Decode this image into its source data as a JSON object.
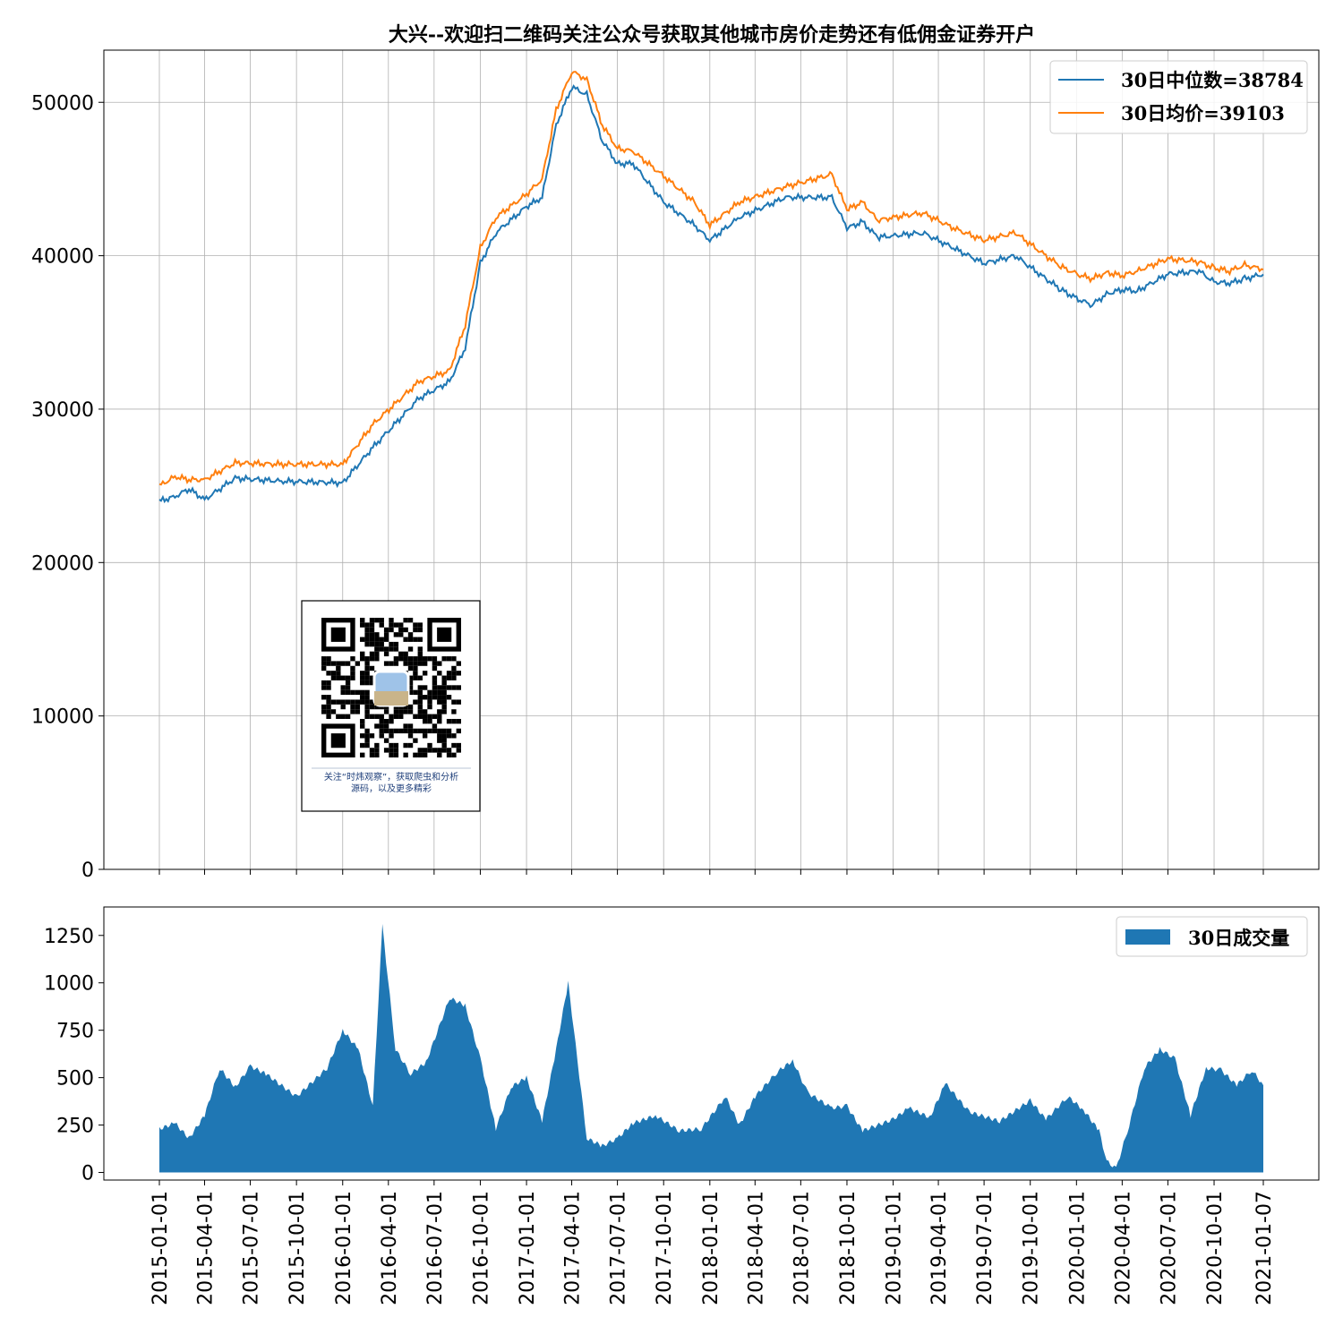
{
  "colors": {
    "median": "#1f77b4",
    "mean": "#ff7f0e",
    "volume": "#1f77b4"
  },
  "chart_data": [
    {
      "type": "line",
      "title": "大兴--欢迎扫二维码关注公众号获取其他城市房价走势还有低佣金证券开户",
      "ylim": [
        0,
        53400
      ],
      "yticks": [
        0,
        10000,
        20000,
        30000,
        40000,
        50000
      ],
      "grid": true,
      "legend_position": "top-right",
      "x": [
        "2015-01-01",
        "2015-02-01",
        "2015-03-01",
        "2015-04-01",
        "2015-06-01",
        "2015-09-01",
        "2016-01-01",
        "2016-03-01",
        "2016-06-01",
        "2016-08-01",
        "2016-09-01",
        "2016-10-01",
        "2016-11-01",
        "2017-01-01",
        "2017-02-01",
        "2017-03-01",
        "2017-04-01",
        "2017-05-01",
        "2017-06-01",
        "2017-07-01",
        "2017-08-01",
        "2017-10-01",
        "2017-12-01",
        "2018-01-01",
        "2018-03-01",
        "2018-06-01",
        "2018-09-01",
        "2018-10-01",
        "2018-11-01",
        "2018-12-01",
        "2019-01-01",
        "2019-03-01",
        "2019-05-01",
        "2019-07-01",
        "2019-09-01",
        "2019-11-01",
        "2019-12-01",
        "2020-01-01",
        "2020-02-01",
        "2020-03-01",
        "2020-04-01",
        "2020-05-01",
        "2020-07-01",
        "2020-09-01",
        "2020-10-01",
        "2020-11-01",
        "2020-12-01",
        "2021-01-07"
      ],
      "series": [
        {
          "name": "30日中位数=38784",
          "values": [
            24000,
            24300,
            24800,
            24100,
            25500,
            25300,
            25200,
            27500,
            30700,
            31800,
            34000,
            39500,
            41500,
            43200,
            43800,
            48500,
            51000,
            50500,
            47500,
            46000,
            46000,
            43500,
            42000,
            41000,
            42500,
            43800,
            43800,
            41800,
            42200,
            41200,
            41300,
            41500,
            40500,
            39500,
            40000,
            38500,
            37800,
            37200,
            36800,
            37500,
            37800,
            37700,
            38800,
            39000,
            38300,
            38200,
            38500,
            38784
          ]
        },
        {
          "name": "30日均价=39103",
          "values": [
            25000,
            25600,
            25400,
            25400,
            26500,
            26400,
            26400,
            29000,
            31800,
            32500,
            35500,
            40500,
            42500,
            44000,
            45000,
            49500,
            52000,
            51500,
            48500,
            47000,
            46800,
            45200,
            43500,
            42000,
            43500,
            44500,
            45300,
            43000,
            43500,
            42300,
            42500,
            42800,
            41800,
            41000,
            41500,
            40000,
            39300,
            38800,
            38500,
            38900,
            38700,
            39000,
            39800,
            39600,
            39200,
            39000,
            39400,
            39103
          ]
        }
      ]
    },
    {
      "type": "area",
      "ylim": [
        -40,
        1400
      ],
      "yticks": [
        0,
        250,
        500,
        750,
        1000,
        1250
      ],
      "grid": false,
      "legend_position": "top-right",
      "x_tick_labels": [
        "2015-01-01",
        "2015-04-01",
        "2015-07-01",
        "2015-10-01",
        "2016-01-01",
        "2016-04-01",
        "2016-07-01",
        "2016-10-01",
        "2017-01-01",
        "2017-04-01",
        "2017-07-01",
        "2017-10-01",
        "2018-01-01",
        "2018-04-01",
        "2018-07-01",
        "2018-10-01",
        "2019-01-01",
        "2019-04-01",
        "2019-07-01",
        "2019-10-01",
        "2020-01-01",
        "2020-04-01",
        "2020-07-01",
        "2020-10-01",
        "2021-01-07"
      ],
      "x": [
        "2015-01-01",
        "2015-02-01",
        "2015-03-01",
        "2015-04-01",
        "2015-05-01",
        "2015-06-01",
        "2015-07-01",
        "2015-08-01",
        "2015-10-01",
        "2015-12-01",
        "2016-01-01",
        "2016-02-01",
        "2016-03-01",
        "2016-03-20",
        "2016-04-15",
        "2016-05-15",
        "2016-06-15",
        "2016-08-01",
        "2016-09-01",
        "2016-10-01",
        "2016-11-01",
        "2016-12-01",
        "2017-01-01",
        "2017-02-01",
        "2017-03-01",
        "2017-03-25",
        "2017-05-01",
        "2017-06-01",
        "2017-07-01",
        "2017-08-01",
        "2017-09-15",
        "2017-11-01",
        "2017-12-15",
        "2018-02-01",
        "2018-03-01",
        "2018-04-01",
        "2018-05-15",
        "2018-06-15",
        "2018-07-15",
        "2018-09-01",
        "2018-10-01",
        "2018-11-01",
        "2019-01-01",
        "2019-02-01",
        "2019-03-15",
        "2019-04-15",
        "2019-06-01",
        "2019-08-01",
        "2019-10-01",
        "2019-11-01",
        "2019-12-15",
        "2020-01-15",
        "2020-02-15",
        "2020-03-01",
        "2020-03-20",
        "2020-04-15",
        "2020-05-15",
        "2020-06-15",
        "2020-07-15",
        "2020-08-15",
        "2020-09-15",
        "2020-10-15",
        "2020-11-15",
        "2020-12-15",
        "2021-01-07"
      ],
      "series": [
        {
          "name": "30日成交量",
          "values": [
            230,
            260,
            180,
            300,
            550,
            450,
            560,
            520,
            400,
            550,
            750,
            650,
            350,
            1300,
            650,
            520,
            580,
            920,
            880,
            600,
            230,
            450,
            500,
            270,
            650,
            1000,
            180,
            140,
            180,
            260,
            300,
            220,
            230,
            400,
            250,
            400,
            530,
            590,
            420,
            340,
            350,
            220,
            280,
            340,
            290,
            470,
            320,
            270,
            380,
            280,
            400,
            330,
            220,
            60,
            20,
            250,
            550,
            650,
            600,
            300,
            550,
            540,
            460,
            540,
            460
          ]
        }
      ]
    }
  ],
  "qr": {
    "caption_line1": "关注“时炜观察”，获取爬虫和分析",
    "caption_line2": "源码，以及更多精彩"
  }
}
